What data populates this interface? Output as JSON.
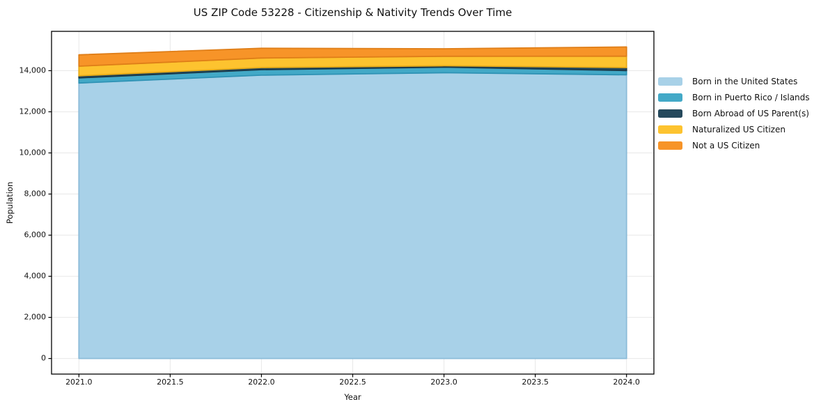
{
  "page": {
    "background": "#ffffff"
  },
  "chart_data": {
    "type": "area",
    "stacked": true,
    "title": "US ZIP Code 53228 - Citizenship & Nativity Trends Over Time",
    "xlabel": "Year",
    "ylabel": "Population",
    "x": [
      2021,
      2022,
      2023,
      2024
    ],
    "series": [
      {
        "name": "Born in the United States",
        "color": "#a8d1e8",
        "edge": "#8cbcd9",
        "values": [
          13400,
          13780,
          13900,
          13800
        ]
      },
      {
        "name": "Born in Puerto Rico / Islands",
        "color": "#43a9c7",
        "edge": "#2f93b5",
        "values": [
          250,
          270,
          270,
          205
        ]
      },
      {
        "name": "Born Abroad of US Parent(s)",
        "color": "#25495c",
        "edge": "#1b3a4a",
        "values": [
          100,
          100,
          70,
          145
        ]
      },
      {
        "name": "Naturalized US Citizen",
        "color": "#fdc32f",
        "edge": "#e8ab17",
        "values": [
          470,
          465,
          460,
          555
        ]
      },
      {
        "name": "Not a US Citizen",
        "color": "#f79428",
        "edge": "#df7e18",
        "values": [
          550,
          475,
          365,
          450
        ]
      }
    ],
    "totals": [
      14770,
      15090,
      15065,
      15155
    ],
    "xlim": [
      2020.85,
      2024.15
    ],
    "ylim": [
      -758,
      15913
    ],
    "xticks": [
      2021.0,
      2021.5,
      2022.0,
      2022.5,
      2023.0,
      2023.5,
      2024.0
    ],
    "xtick_labels": [
      "2021.0",
      "2021.5",
      "2022.0",
      "2022.5",
      "2023.0",
      "2023.5",
      "2024.0"
    ],
    "yticks": [
      0,
      2000,
      4000,
      6000,
      8000,
      10000,
      12000,
      14000
    ],
    "ytick_labels": [
      "0",
      "2,000",
      "4,000",
      "6,000",
      "8,000",
      "10,000",
      "12,000",
      "14,000"
    ],
    "grid": true,
    "grid_color": "#e8e8e8",
    "spine_color": "#000000",
    "legend_position": "right"
  }
}
